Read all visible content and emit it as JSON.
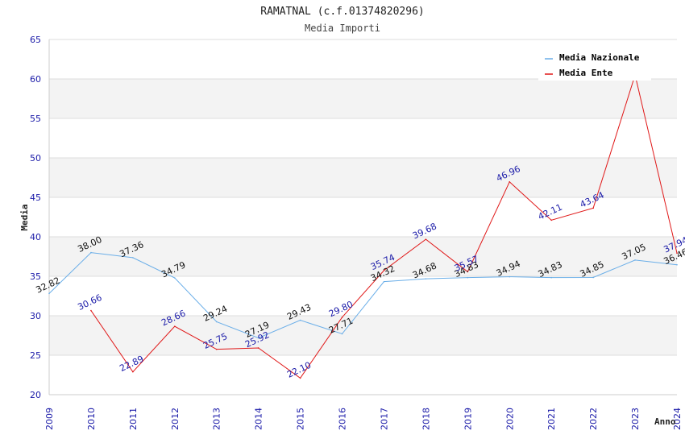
{
  "chart_data": {
    "type": "line",
    "title": "RAMATNAL (c.f.01374820296)",
    "subtitle": "Media Importi",
    "xlabel": "Anno",
    "ylabel": "Media",
    "ylim": [
      20,
      65
    ],
    "yticks": [
      20,
      25,
      30,
      35,
      40,
      45,
      50,
      55,
      60,
      65
    ],
    "categories": [
      "2009",
      "2010",
      "2011",
      "2012",
      "2013",
      "2014",
      "2015",
      "2016",
      "2017",
      "2018",
      "2019",
      "2020",
      "2021",
      "2022",
      "2023",
      "2024"
    ],
    "series": [
      {
        "name": "Media Nazionale",
        "color": "#6aaee8",
        "label_color": "#111111",
        "values": [
          32.82,
          38.0,
          37.36,
          34.79,
          29.24,
          27.19,
          29.43,
          27.71,
          34.32,
          34.68,
          34.83,
          34.94,
          34.83,
          34.85,
          37.05,
          36.46
        ],
        "labels": [
          "32.82",
          "38.00",
          "37.36",
          "34.79",
          "29.24",
          "27.19",
          "29.43",
          "27.71",
          "34.32",
          "34.68",
          "34.83",
          "34.94",
          "34.83",
          "34.85",
          "37.05",
          "36.46"
        ]
      },
      {
        "name": "Media Ente",
        "color": "#e01818",
        "label_color": "#1a1aa8",
        "values": [
          null,
          30.66,
          22.89,
          28.66,
          25.75,
          25.92,
          22.1,
          29.8,
          35.74,
          39.68,
          35.57,
          46.96,
          42.11,
          43.64,
          60.5,
          37.94
        ],
        "labels": [
          null,
          "30.66",
          "22.89",
          "28.66",
          "25.75",
          "25.92",
          "22.10",
          "29.80",
          "35.74",
          "39.68",
          "35.57",
          "46.96",
          "42.11",
          "43.64",
          null,
          "37.94"
        ]
      }
    ],
    "legend_position": "top-right",
    "grid": true
  }
}
